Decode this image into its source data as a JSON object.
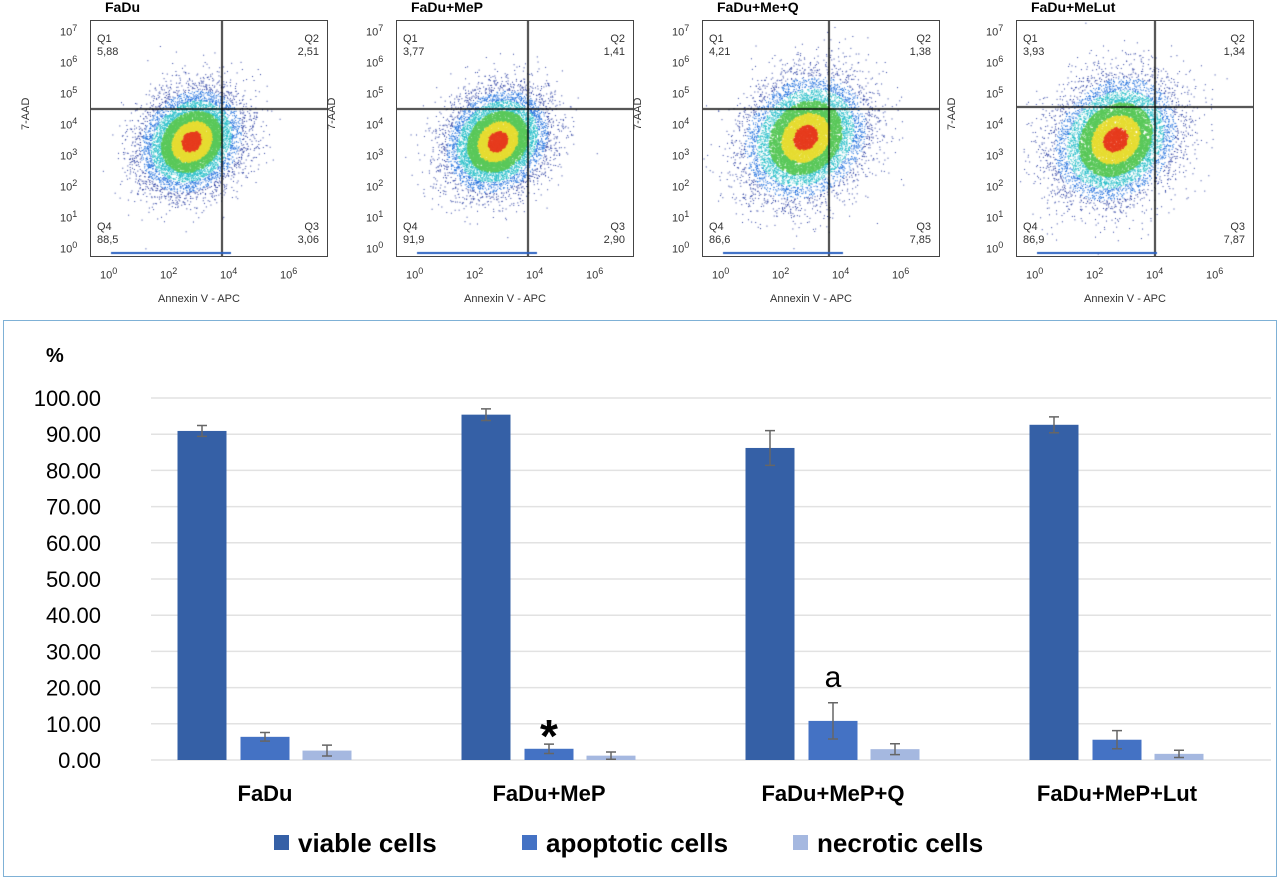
{
  "flow_plots": [
    {
      "title": "FaDu",
      "xlabel": "Annexin V - APC",
      "ylabel": "7-AAD",
      "quadrants": [
        {
          "name": "Q1",
          "value": "5,88"
        },
        {
          "name": "Q2",
          "value": "2,51"
        },
        {
          "name": "Q3",
          "value": "3,06"
        },
        {
          "name": "Q4",
          "value": "88,5"
        }
      ]
    },
    {
      "title": "FaDu+MeP",
      "xlabel": "Annexin V - APC",
      "ylabel": "7-AAD",
      "quadrants": [
        {
          "name": "Q1",
          "value": "3,77"
        },
        {
          "name": "Q2",
          "value": "1,41"
        },
        {
          "name": "Q3",
          "value": "2,90"
        },
        {
          "name": "Q4",
          "value": "91,9"
        }
      ]
    },
    {
      "title": "FaDu+Me+Q",
      "xlabel": "Annexin V - APC",
      "ylabel": "7-AAD",
      "quadrants": [
        {
          "name": "Q1",
          "value": "4,21"
        },
        {
          "name": "Q2",
          "value": "1,38"
        },
        {
          "name": "Q3",
          "value": "7,85"
        },
        {
          "name": "Q4",
          "value": "86,6"
        }
      ]
    },
    {
      "title": "FaDu+MeLut",
      "xlabel": "Annexin V - APC",
      "ylabel": "7-AAD",
      "quadrants": [
        {
          "name": "Q1",
          "value": "3,93"
        },
        {
          "name": "Q2",
          "value": "1,34"
        },
        {
          "name": "Q3",
          "value": "7,87"
        },
        {
          "name": "Q4",
          "value": "86,9"
        }
      ]
    }
  ],
  "flow_axis": {
    "x_ticks": [
      "0",
      "2",
      "4",
      "6"
    ],
    "y_ticks": [
      "0",
      "1",
      "2",
      "3",
      "4",
      "5",
      "6",
      "7"
    ],
    "base": "10",
    "scale": "log"
  },
  "chart_data": {
    "type": "bar",
    "ylabel": "%",
    "ylim": [
      0,
      100
    ],
    "yticks": [
      "0.00",
      "10.00",
      "20.00",
      "30.00",
      "40.00",
      "50.00",
      "60.00",
      "70.00",
      "80.00",
      "90.00",
      "100.00"
    ],
    "grid": true,
    "legend_position": "bottom",
    "categories": [
      "FaDu",
      "FaDu+MeP",
      "FaDu+MeP+Q",
      "FaDu+MeP+Lut"
    ],
    "series": [
      {
        "name": "viable cells",
        "color": "#3560a6",
        "values": [
          90.9,
          95.4,
          86.2,
          92.6
        ],
        "errors": [
          1.5,
          1.6,
          4.8,
          2.2
        ]
      },
      {
        "name": "apoptotic cells",
        "color": "#4472c4",
        "values": [
          6.4,
          3.1,
          10.8,
          5.6
        ],
        "errors": [
          1.2,
          1.3,
          5.0,
          2.5
        ]
      },
      {
        "name": "necrotic cells",
        "color": "#a5b8e0",
        "values": [
          2.6,
          1.2,
          3.0,
          1.7
        ],
        "errors": [
          1.5,
          1.0,
          1.5,
          1.0
        ]
      }
    ],
    "annotations": [
      {
        "text": "*",
        "category": "FaDu+MeP",
        "series": "apoptotic cells"
      },
      {
        "text": "a",
        "category": "FaDu+MeP+Q",
        "series": "apoptotic cells"
      }
    ]
  }
}
